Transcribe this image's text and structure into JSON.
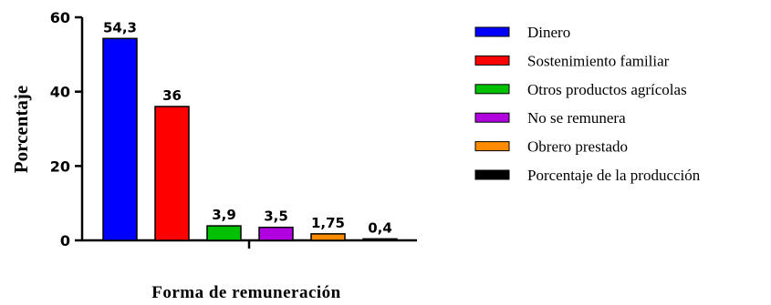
{
  "chart_data": {
    "type": "bar",
    "title": "",
    "xlabel": "Forma de remuneración",
    "ylabel": "Porcentaje",
    "ylim": [
      0,
      60
    ],
    "yticks": [
      0,
      20,
      40,
      60
    ],
    "grid": false,
    "legend_position": "right",
    "categories": [
      "Dinero",
      "Sostenimiento familiar",
      "Otros productos agrícolas",
      "No se remunera",
      "Obrero prestado",
      "Porcentaje de la producción"
    ],
    "values": [
      54.3,
      36,
      3.9,
      3.5,
      1.75,
      0.4
    ],
    "value_labels": [
      "54,3",
      "36",
      "3,9",
      "3,5",
      "1,75",
      "0,4"
    ],
    "colors": [
      "#0000ff",
      "#ff0000",
      "#00c000",
      "#b000e0",
      "#ff8c00",
      "#000000"
    ],
    "legend": [
      "Dinero",
      "Sostenimiento familiar",
      "Otros productos agrícolas",
      "No se remunera",
      "Obrero prestado",
      "Porcentaje de la producción"
    ]
  }
}
